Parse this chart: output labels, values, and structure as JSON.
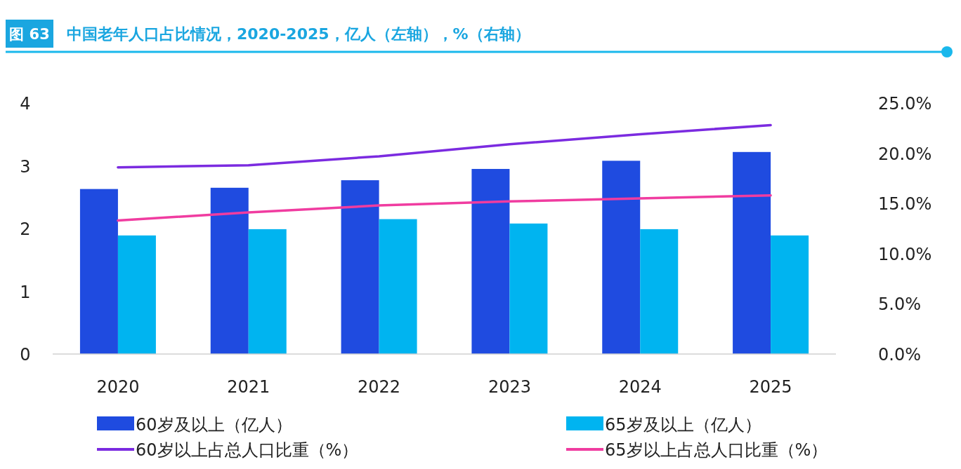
{
  "chart_data": {
    "type": "bar",
    "title": "中国老年人口占比情况，2020-2025，亿人（左轴），%（右轴）",
    "annotations": [
      "图 63"
    ],
    "categories": [
      "2020",
      "2021",
      "2022",
      "2023",
      "2024",
      "2025"
    ],
    "series": [
      {
        "name": "60岁及以上（亿人）",
        "color": "#1f4be0",
        "values": [
          2.63,
          2.65,
          2.77,
          2.95,
          3.08,
          3.22
        ]
      },
      {
        "name": "65岁及以上（亿人）",
        "color": "#00b4f0",
        "values": [
          1.89,
          1.99,
          2.15,
          2.08,
          1.99,
          1.89
        ]
      },
      {
        "name": "60岁以上占总人口比重（%）",
        "type": "line",
        "axis": "y2",
        "color": "#7b2be0",
        "values": [
          18.6,
          18.8,
          19.7,
          20.9,
          21.9,
          22.8
        ]
      },
      {
        "name": "65岁以上占总人口比重（%）",
        "type": "line",
        "axis": "y2",
        "color": "#f03ca0",
        "values": [
          13.3,
          14.1,
          14.8,
          15.2,
          15.5,
          15.8
        ]
      }
    ],
    "ylim": [
      0,
      4
    ],
    "yticks": [
      0,
      1,
      2,
      3,
      4
    ],
    "y2lim": [
      0,
      25
    ],
    "y2ticks": [
      {
        "value": 0,
        "label": "0.0%"
      },
      {
        "value": 5,
        "label": "5.0%"
      },
      {
        "value": 10,
        "label": "10.0%"
      },
      {
        "value": 15,
        "label": "15.0%"
      },
      {
        "value": 20,
        "label": "20.0%"
      },
      {
        "value": 25,
        "label": "25.0%"
      }
    ],
    "legend": "bottom",
    "grid": false
  }
}
